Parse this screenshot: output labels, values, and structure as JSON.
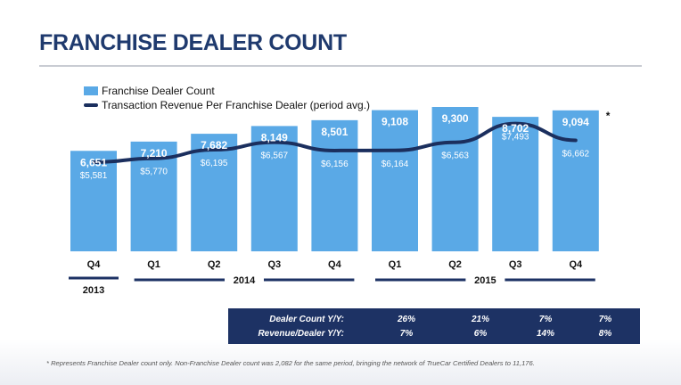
{
  "title": "FRANCHISE DEALER COUNT",
  "legend": {
    "bar_series": "Franchise Dealer Count",
    "line_series": "Transaction Revenue Per Franchise Dealer (period avg.)"
  },
  "colors": {
    "bar": "#5aa9e6",
    "line": "#1b2f5e",
    "title": "#1f3a6e",
    "table_bg": "#1d3264"
  },
  "chart_data": {
    "type": "bar",
    "categories": [
      "Q4",
      "Q1",
      "Q2",
      "Q3",
      "Q4",
      "Q1",
      "Q2",
      "Q3",
      "Q4"
    ],
    "years": [
      {
        "label": "2013",
        "from": 0,
        "to": 0
      },
      {
        "label": "2014",
        "from": 1,
        "to": 4
      },
      {
        "label": "2015",
        "from": 5,
        "to": 8
      }
    ],
    "series": [
      {
        "name": "Franchise Dealer Count",
        "type": "bar",
        "values": [
          6651,
          7210,
          7682,
          8149,
          8501,
          9108,
          9300,
          8702,
          9094
        ],
        "labels": [
          "6,651",
          "7,210",
          "7,682",
          "8,149",
          "8,501",
          "9,108",
          "9,300",
          "8,702",
          "9,094"
        ]
      },
      {
        "name": "Transaction Revenue Per Franchise Dealer (period avg.)",
        "type": "line",
        "values": [
          5581,
          5770,
          6195,
          6567,
          6156,
          6164,
          6563,
          7493,
          6662
        ],
        "labels": [
          "$5,581",
          "$5,770",
          "$6,195",
          "$6,567",
          "$6,156",
          "$6,164",
          "$6,563",
          "$7,493",
          "$6,662"
        ]
      }
    ],
    "annotation": "*",
    "ylim_bars": [
      0,
      10000
    ],
    "ylim_line": [
      0,
      10000
    ],
    "grid": false,
    "legend_position": "top-left"
  },
  "yoy_table": {
    "rows": [
      {
        "label": "Dealer Count Y/Y:",
        "values": [
          "26%",
          "21%",
          "7%",
          "7%"
        ]
      },
      {
        "label": "Revenue/Dealer Y/Y:",
        "values": [
          "7%",
          "6%",
          "14%",
          "8%"
        ]
      }
    ]
  },
  "footnote": "* Represents Franchise Dealer count only. Non-Franchise Dealer count was 2,082 for the same period, bringing the network of TrueCar Certified Dealers to 11,176."
}
